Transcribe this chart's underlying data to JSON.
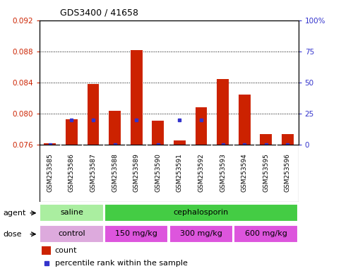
{
  "title": "GDS3400 / 41658",
  "samples": [
    "GSM253585",
    "GSM253586",
    "GSM253587",
    "GSM253588",
    "GSM253589",
    "GSM253590",
    "GSM253591",
    "GSM253592",
    "GSM253593",
    "GSM253594",
    "GSM253595",
    "GSM253596"
  ],
  "red_values": [
    0.0762,
    0.0793,
    0.0838,
    0.0804,
    0.0882,
    0.0791,
    0.0766,
    0.0808,
    0.0845,
    0.0825,
    0.0774,
    0.0774
  ],
  "blue_values": [
    0.5,
    20.0,
    20.0,
    0.5,
    20.0,
    0.5,
    20.0,
    20.0,
    0.5,
    0.5,
    0.5,
    0.5
  ],
  "ylim_left": [
    0.076,
    0.092
  ],
  "ylim_right": [
    0.0,
    100.0
  ],
  "yticks_left": [
    0.076,
    0.08,
    0.084,
    0.088,
    0.092
  ],
  "yticks_right": [
    0,
    25,
    50,
    75,
    100
  ],
  "ytick_labels_right": [
    "0",
    "25",
    "50",
    "75",
    "100%"
  ],
  "bar_color": "#cc2200",
  "blue_color": "#3333cc",
  "agent_groups": [
    {
      "label": "saline",
      "start": 0,
      "end": 3,
      "color": "#aaeea0"
    },
    {
      "label": "cephalosporin",
      "start": 3,
      "end": 12,
      "color": "#44cc44"
    }
  ],
  "dose_groups": [
    {
      "label": "control",
      "start": 0,
      "end": 3,
      "color": "#ddaadd"
    },
    {
      "label": "150 mg/kg",
      "start": 3,
      "end": 6,
      "color": "#dd55dd"
    },
    {
      "label": "300 mg/kg",
      "start": 6,
      "end": 9,
      "color": "#dd55dd"
    },
    {
      "label": "600 mg/kg",
      "start": 9,
      "end": 12,
      "color": "#dd55dd"
    }
  ],
  "xtick_bg_color": "#c8c8c8",
  "xtick_line_color": "#ffffff",
  "plot_border_color": "#000000"
}
